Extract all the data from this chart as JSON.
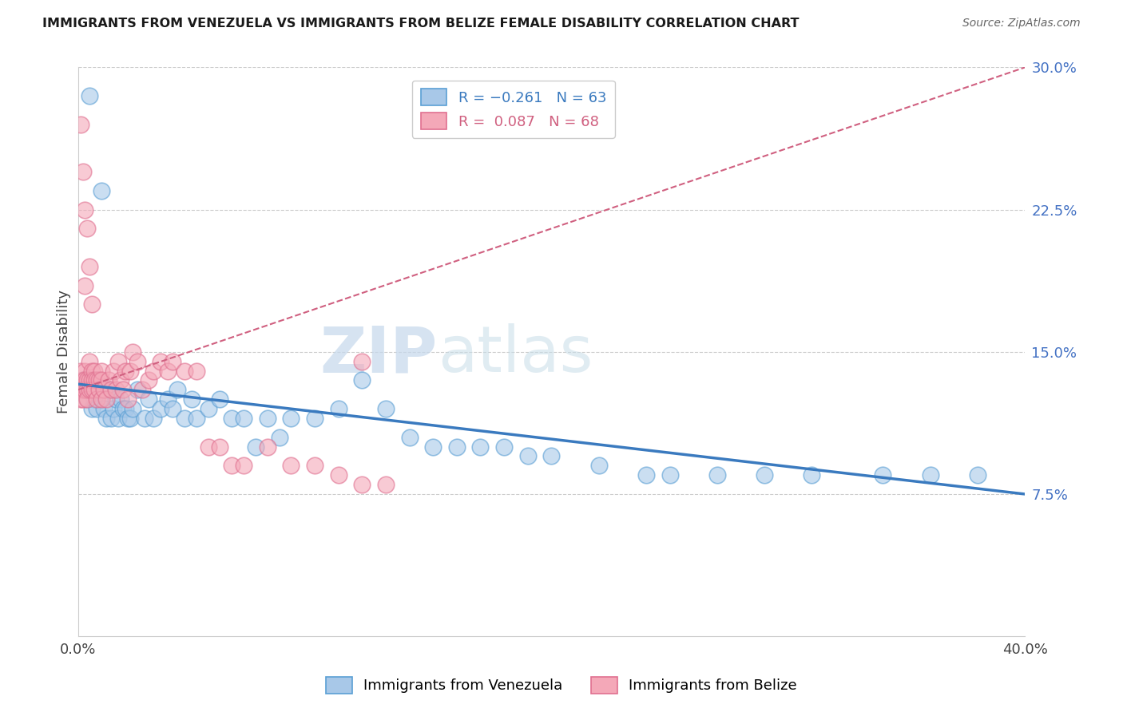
{
  "title": "IMMIGRANTS FROM VENEZUELA VS IMMIGRANTS FROM BELIZE FEMALE DISABILITY CORRELATION CHART",
  "source": "Source: ZipAtlas.com",
  "ylabel": "Female Disability",
  "color_venezuela": "#a8c8e8",
  "color_venezuela_edge": "#5a9fd4",
  "color_belize": "#f4a8b8",
  "color_belize_edge": "#e07090",
  "color_venezuela_line": "#3a7abf",
  "color_belize_line": "#d06080",
  "watermark_zip": "ZIP",
  "watermark_atlas": "atlas",
  "xlim": [
    0.0,
    0.4
  ],
  "ylim": [
    0.0,
    0.3
  ],
  "ytick_vals": [
    0.075,
    0.15,
    0.225,
    0.3
  ],
  "ytick_labels": [
    "7.5%",
    "15.0%",
    "22.5%",
    "30.0%"
  ],
  "ven_R": "-0.261",
  "ven_N": "63",
  "bel_R": "0.087",
  "bel_N": "68",
  "legend_label_venezuela": "Immigrants from Venezuela",
  "legend_label_belize": "Immigrants from Belize",
  "venezuela_x": [
    0.002,
    0.003,
    0.004,
    0.005,
    0.006,
    0.007,
    0.008,
    0.009,
    0.01,
    0.011,
    0.012,
    0.013,
    0.014,
    0.015,
    0.016,
    0.017,
    0.018,
    0.019,
    0.02,
    0.021,
    0.022,
    0.023,
    0.025,
    0.028,
    0.03,
    0.032,
    0.035,
    0.038,
    0.04,
    0.042,
    0.045,
    0.048,
    0.05,
    0.055,
    0.06,
    0.065,
    0.07,
    0.075,
    0.08,
    0.085,
    0.09,
    0.1,
    0.11,
    0.12,
    0.13,
    0.14,
    0.15,
    0.16,
    0.17,
    0.18,
    0.19,
    0.2,
    0.22,
    0.24,
    0.25,
    0.27,
    0.29,
    0.31,
    0.34,
    0.36,
    0.005,
    0.01,
    0.38
  ],
  "venezuela_y": [
    0.135,
    0.13,
    0.125,
    0.13,
    0.12,
    0.125,
    0.12,
    0.13,
    0.125,
    0.12,
    0.115,
    0.13,
    0.115,
    0.12,
    0.125,
    0.115,
    0.125,
    0.12,
    0.12,
    0.115,
    0.115,
    0.12,
    0.13,
    0.115,
    0.125,
    0.115,
    0.12,
    0.125,
    0.12,
    0.13,
    0.115,
    0.125,
    0.115,
    0.12,
    0.125,
    0.115,
    0.115,
    0.1,
    0.115,
    0.105,
    0.115,
    0.115,
    0.12,
    0.135,
    0.12,
    0.105,
    0.1,
    0.1,
    0.1,
    0.1,
    0.095,
    0.095,
    0.09,
    0.085,
    0.085,
    0.085,
    0.085,
    0.085,
    0.085,
    0.085,
    0.285,
    0.235,
    0.085
  ],
  "belize_x": [
    0.001,
    0.001,
    0.001,
    0.002,
    0.002,
    0.002,
    0.003,
    0.003,
    0.003,
    0.004,
    0.004,
    0.004,
    0.005,
    0.005,
    0.005,
    0.006,
    0.006,
    0.006,
    0.007,
    0.007,
    0.007,
    0.008,
    0.008,
    0.009,
    0.009,
    0.01,
    0.01,
    0.01,
    0.011,
    0.012,
    0.013,
    0.014,
    0.015,
    0.016,
    0.017,
    0.018,
    0.019,
    0.02,
    0.021,
    0.022,
    0.023,
    0.025,
    0.027,
    0.03,
    0.032,
    0.035,
    0.038,
    0.04,
    0.045,
    0.05,
    0.055,
    0.06,
    0.065,
    0.07,
    0.08,
    0.09,
    0.1,
    0.11,
    0.12,
    0.13,
    0.001,
    0.002,
    0.003,
    0.003,
    0.004,
    0.005,
    0.006,
    0.12
  ],
  "belize_y": [
    0.14,
    0.13,
    0.125,
    0.135,
    0.13,
    0.125,
    0.14,
    0.135,
    0.13,
    0.135,
    0.13,
    0.125,
    0.145,
    0.135,
    0.13,
    0.14,
    0.135,
    0.13,
    0.14,
    0.135,
    0.13,
    0.135,
    0.125,
    0.135,
    0.13,
    0.14,
    0.135,
    0.125,
    0.13,
    0.125,
    0.135,
    0.13,
    0.14,
    0.13,
    0.145,
    0.135,
    0.13,
    0.14,
    0.125,
    0.14,
    0.15,
    0.145,
    0.13,
    0.135,
    0.14,
    0.145,
    0.14,
    0.145,
    0.14,
    0.14,
    0.1,
    0.1,
    0.09,
    0.09,
    0.1,
    0.09,
    0.09,
    0.085,
    0.08,
    0.08,
    0.27,
    0.245,
    0.225,
    0.185,
    0.215,
    0.195,
    0.175,
    0.145
  ]
}
